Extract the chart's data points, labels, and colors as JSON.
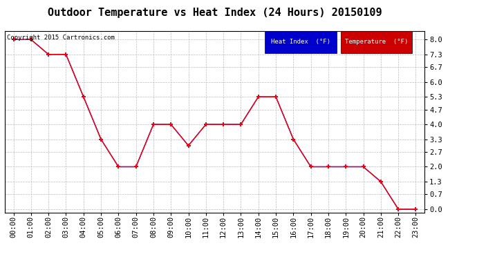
{
  "title": "Outdoor Temperature vs Heat Index (24 Hours) 20150109",
  "copyright_text": "Copyright 2015 Cartronics.com",
  "x_labels": [
    "00:00",
    "01:00",
    "02:00",
    "03:00",
    "04:00",
    "05:00",
    "06:00",
    "07:00",
    "08:00",
    "09:00",
    "10:00",
    "11:00",
    "12:00",
    "13:00",
    "14:00",
    "15:00",
    "16:00",
    "17:00",
    "18:00",
    "19:00",
    "20:00",
    "21:00",
    "22:00",
    "23:00"
  ],
  "y_ticks": [
    0.0,
    0.7,
    1.3,
    2.0,
    2.7,
    3.3,
    4.0,
    4.7,
    5.3,
    6.0,
    6.7,
    7.3,
    8.0
  ],
  "ylim": [
    -0.15,
    8.4
  ],
  "xlim": [
    -0.5,
    23.5
  ],
  "temperature_data": [
    8.0,
    8.0,
    7.3,
    7.3,
    5.3,
    3.3,
    2.0,
    2.0,
    4.0,
    4.0,
    3.0,
    4.0,
    4.0,
    4.0,
    5.3,
    5.3,
    3.3,
    2.0,
    2.0,
    2.0,
    2.0,
    1.3,
    0.0,
    0.0
  ],
  "heat_index_data": [
    8.0,
    8.0,
    7.3,
    7.3,
    5.3,
    3.3,
    2.0,
    2.0,
    4.0,
    4.0,
    3.0,
    4.0,
    4.0,
    4.0,
    5.3,
    5.3,
    3.3,
    2.0,
    2.0,
    2.0,
    2.0,
    1.3,
    0.0,
    0.0
  ],
  "temp_color": "#ff0000",
  "heat_index_color": "#0000cc",
  "legend_heat_bg": "#0000cc",
  "legend_temp_bg": "#cc0000",
  "legend_heat_label": "Heat Index  (°F)",
  "legend_temp_label": "Temperature  (°F)",
  "background_color": "#ffffff",
  "plot_bg_color": "#ffffff",
  "grid_color": "#bbbbbb",
  "title_fontsize": 11,
  "tick_fontsize": 7.5,
  "copyright_fontsize": 6.5
}
